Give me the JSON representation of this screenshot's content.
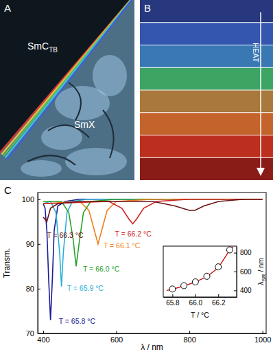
{
  "panels": {
    "A": {
      "label": "A",
      "phase_1": "SmC",
      "phase_1_subscript": "TB",
      "phase_2": "SmX"
    },
    "B": {
      "label": "B",
      "arrow_label": "HEAT",
      "colors": [
        "#28387e",
        "#3556ae",
        "#3a78b4",
        "#3ea464",
        "#a8783c",
        "#c4642c",
        "#bc2e1e",
        "#8a1c18"
      ]
    }
  },
  "chart_data": [
    {
      "type": "line",
      "title": "C",
      "xlabel": "λ / nm",
      "ylabel": "Transm.",
      "xlim": [
        385,
        1010
      ],
      "ylim": [
        70,
        101.5
      ],
      "xticks": [
        400,
        600,
        800,
        1000
      ],
      "yticks": [
        70,
        80,
        90,
        100
      ],
      "series": [
        {
          "name": "T = 65.8 °C",
          "color": "#1c1c96",
          "x": [
            400,
            405,
            410,
            415,
            420,
            425,
            430,
            440,
            460,
            500,
            600,
            800,
            1000
          ],
          "values": [
            99,
            98,
            93,
            82,
            73,
            82,
            93,
            98.5,
            99.5,
            100,
            100,
            100,
            100
          ]
        },
        {
          "name": "T = 65.9 °C",
          "color": "#2ab0d8",
          "x": [
            400,
            420,
            435,
            445,
            450,
            455,
            465,
            480,
            520,
            600,
            800,
            1000
          ],
          "values": [
            99,
            99.5,
            97,
            88,
            80.5,
            88,
            97,
            99.5,
            100,
            100,
            100,
            100
          ]
        },
        {
          "name": "T = 66.0 °C",
          "color": "#2ca02c",
          "x": [
            400,
            450,
            470,
            482,
            490,
            498,
            510,
            530,
            600,
            800,
            1000
          ],
          "values": [
            99.5,
            99.5,
            97,
            91,
            85,
            90,
            97,
            99.5,
            100,
            100,
            100
          ]
        },
        {
          "name": "T = 66.1 °C",
          "color": "#f07f1e",
          "x": [
            400,
            500,
            525,
            540,
            550,
            560,
            575,
            600,
            700,
            1000
          ],
          "values": [
            99,
            99.5,
            97.5,
            93,
            90,
            93,
            97.5,
            99.5,
            100,
            100
          ]
        },
        {
          "name": "T = 66.2 °C",
          "color": "#d02020",
          "x": [
            400,
            580,
            615,
            635,
            645,
            655,
            675,
            710,
            800,
            1000
          ],
          "values": [
            99,
            99.5,
            98,
            95.5,
            94.5,
            95.5,
            98,
            99.5,
            100,
            100
          ]
        },
        {
          "name": "T = 66.3 °C",
          "color": "#6a1212",
          "x": [
            400,
            410,
            420,
            440,
            500,
            700,
            760,
            800,
            815,
            840,
            880,
            950,
            1000
          ],
          "values": [
            96,
            95,
            98,
            99,
            99.5,
            99.5,
            98.5,
            97.5,
            97.5,
            98.5,
            99.5,
            100,
            100
          ]
        }
      ]
    },
    {
      "type": "line",
      "xlabel": "T / °C",
      "ylabel": "λ",
      "ylabel_subscript": "SR",
      "ylabel_unit": " / nm",
      "xlim": [
        65.72,
        66.36
      ],
      "ylim": [
        330,
        870
      ],
      "xticks": [
        65.8,
        {
          "value": 66,
          "label": "66.0"
        },
        66.2
      ],
      "yticks": [
        400,
        600,
        800
      ],
      "series": [
        {
          "type": "line",
          "color": "#cc0000",
          "x": [
            65.75,
            65.8,
            65.9,
            66.0,
            66.1,
            66.2,
            66.3,
            66.33
          ],
          "values": [
            400,
            412,
            448,
            490,
            545,
            640,
            830,
            865
          ]
        },
        {
          "type": "scatter",
          "marker": "circle",
          "color": "#000000",
          "x": [
            65.8,
            65.9,
            66.0,
            66.1,
            66.2,
            66.3
          ],
          "values": [
            415,
            450,
            490,
            550,
            650,
            830
          ]
        }
      ]
    }
  ]
}
